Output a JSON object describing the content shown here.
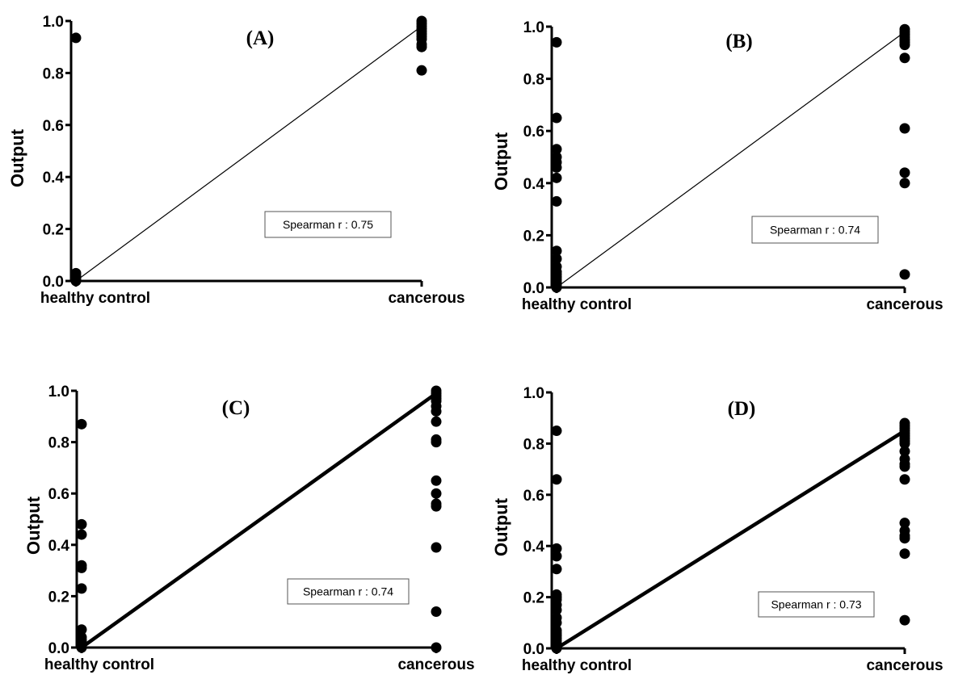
{
  "chart_data": [
    {
      "type": "scatter",
      "panel_label": "(A)",
      "categories": [
        "healthy control",
        "cancerous"
      ],
      "ylabel": "Output",
      "ylim": [
        0,
        1.0
      ],
      "yticks": [
        "0.0",
        "0.2",
        "0.4",
        "0.6",
        "0.8",
        "1.0"
      ],
      "annotation": "Spearman r : 0.75",
      "fit_line": {
        "from": 0.0,
        "to": 0.98,
        "style": "thin"
      },
      "series": [
        {
          "category": "healthy control",
          "values": [
            0.935,
            0.03,
            0.02,
            0.01,
            0.005,
            0.0
          ]
        },
        {
          "category": "cancerous",
          "values": [
            1.0,
            0.99,
            0.98,
            0.97,
            0.96,
            0.95,
            0.94,
            0.93,
            0.91,
            0.9,
            0.81
          ]
        }
      ]
    },
    {
      "type": "scatter",
      "panel_label": "(B)",
      "categories": [
        "healthy control",
        "cancerous"
      ],
      "ylabel": "Output",
      "ylim": [
        0,
        1.0
      ],
      "yticks": [
        "0.0",
        "0.2",
        "0.4",
        "0.6",
        "0.8",
        "1.0"
      ],
      "annotation": "Spearman r : 0.74",
      "fit_line": {
        "from": 0.0,
        "to": 0.98,
        "style": "thin"
      },
      "series": [
        {
          "category": "healthy control",
          "values": [
            0.94,
            0.65,
            0.53,
            0.5,
            0.48,
            0.46,
            0.42,
            0.33,
            0.14,
            0.11,
            0.08,
            0.06,
            0.05,
            0.04,
            0.03,
            0.02,
            0.01,
            0.0
          ]
        },
        {
          "category": "cancerous",
          "values": [
            0.99,
            0.98,
            0.97,
            0.96,
            0.95,
            0.94,
            0.93,
            0.88,
            0.61,
            0.44,
            0.4,
            0.05
          ]
        }
      ]
    },
    {
      "type": "scatter",
      "panel_label": "(C)",
      "categories": [
        "healthy control",
        "cancerous"
      ],
      "ylabel": "Output",
      "ylim": [
        0,
        1.0
      ],
      "yticks": [
        "0.0",
        "0.2",
        "0.4",
        "0.6",
        "0.8",
        "1.0"
      ],
      "annotation": "Spearman r : 0.74",
      "fit_line": {
        "from": 0.0,
        "to": 0.99,
        "style": "thick"
      },
      "series": [
        {
          "category": "healthy control",
          "values": [
            0.87,
            0.48,
            0.44,
            0.32,
            0.31,
            0.23,
            0.07,
            0.04,
            0.03,
            0.02,
            0.01,
            0.0
          ]
        },
        {
          "category": "cancerous",
          "values": [
            1.0,
            0.99,
            0.98,
            0.97,
            0.96,
            0.94,
            0.92,
            0.88,
            0.81,
            0.8,
            0.65,
            0.6,
            0.56,
            0.55,
            0.39,
            0.14,
            0.0
          ]
        }
      ]
    },
    {
      "type": "scatter",
      "panel_label": "(D)",
      "categories": [
        "healthy control",
        "cancerous"
      ],
      "ylabel": "Output",
      "ylim": [
        0,
        1.0
      ],
      "yticks": [
        "0.0",
        "0.2",
        "0.4",
        "0.6",
        "0.8",
        "1.0"
      ],
      "annotation": "Spearman r : 0.73",
      "fit_line": {
        "from": 0.0,
        "to": 0.85,
        "style": "thick"
      },
      "series": [
        {
          "category": "healthy control",
          "values": [
            0.85,
            0.66,
            0.39,
            0.36,
            0.31,
            0.21,
            0.2,
            0.19,
            0.17,
            0.15,
            0.12,
            0.1,
            0.07,
            0.06,
            0.05,
            0.04,
            0.03,
            0.02,
            0.01,
            0.0
          ]
        },
        {
          "category": "cancerous",
          "values": [
            0.88,
            0.87,
            0.86,
            0.85,
            0.84,
            0.83,
            0.82,
            0.81,
            0.8,
            0.77,
            0.74,
            0.72,
            0.71,
            0.66,
            0.49,
            0.46,
            0.44,
            0.43,
            0.37,
            0.11
          ]
        }
      ]
    }
  ]
}
